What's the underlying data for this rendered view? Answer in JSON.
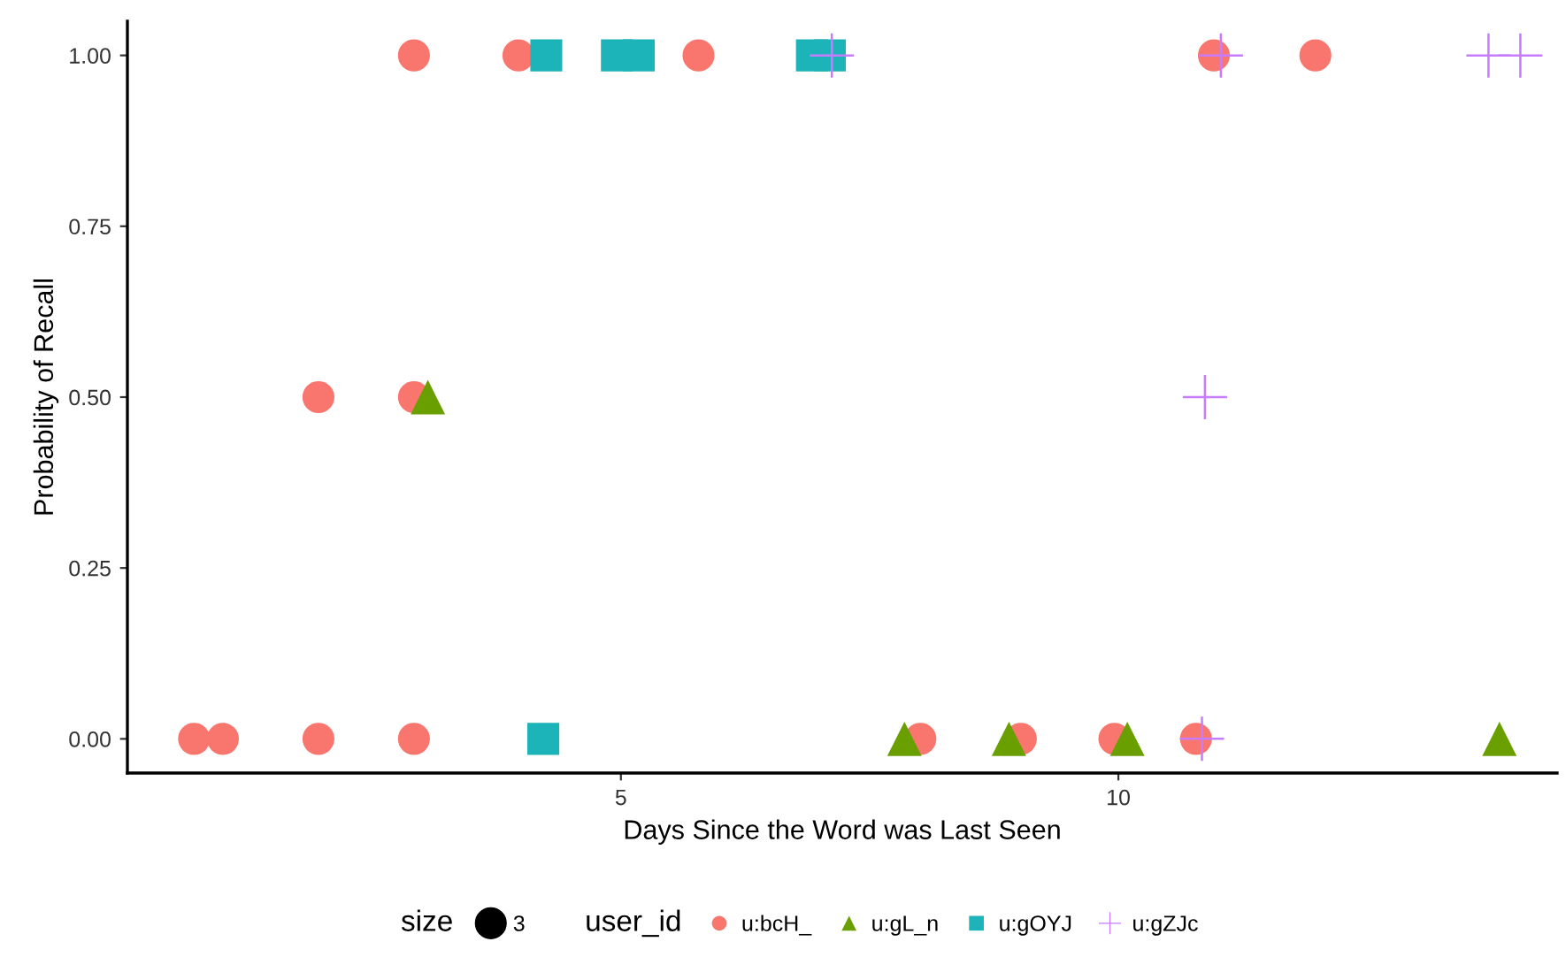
{
  "chart_data": {
    "type": "scatter",
    "xlabel": "Days Since the Word was Last Seen",
    "ylabel": "Probability of Recall",
    "xlim": [
      0.04,
      14.41
    ],
    "xticks": [
      5,
      10
    ],
    "ylim": [
      -0.05,
      1.05
    ],
    "yticks": [
      {
        "value": 0,
        "label": "0.00"
      },
      {
        "value": 0.25,
        "label": "0.25"
      },
      {
        "value": 0.5,
        "label": "0.50"
      },
      {
        "value": 0.75,
        "label": "0.75"
      },
      {
        "value": 1,
        "label": "1.00"
      }
    ],
    "grid": false,
    "legend": "bottom",
    "legend_title": "user_id",
    "annotations": [
      "size",
      "3"
    ],
    "series": [
      {
        "name": "u:bcH_",
        "color": "#f8766d",
        "marker": "circle",
        "x": [
          2.92,
          3.97,
          5.78,
          10.96,
          11.98,
          1.96,
          2.92,
          0.71,
          1.0,
          1.96,
          2.92,
          8.01,
          9.02,
          9.96,
          10.78
        ],
        "values": [
          1,
          1,
          1,
          1,
          1,
          0.5,
          0.5,
          0,
          0,
          0,
          0,
          0,
          0,
          0,
          0
        ]
      },
      {
        "name": "u:gL_n",
        "color": "#6a9f00",
        "marker": "triangle",
        "x": [
          3.06,
          7.85,
          8.9,
          10.09,
          13.83
        ],
        "values": [
          0.5,
          0,
          0,
          0,
          0
        ]
      },
      {
        "name": "u:gOYJ",
        "color": "#1cb4b9",
        "marker": "square",
        "x": [
          4.25,
          4.96,
          5.18,
          6.92,
          7.1,
          4.22
        ],
        "values": [
          1,
          1,
          1,
          1,
          1,
          0
        ]
      },
      {
        "name": "u:gZJc",
        "color": "#c77cff",
        "marker": "cross",
        "x": [
          7.12,
          11.03,
          13.72,
          14.04,
          10.87,
          10.84
        ],
        "values": [
          1,
          1,
          1,
          1,
          0.5,
          0
        ]
      }
    ]
  }
}
